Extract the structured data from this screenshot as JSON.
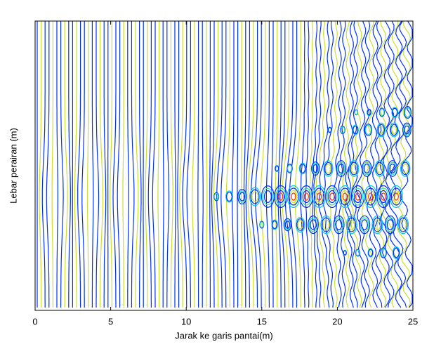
{
  "chart_data": {
    "type": "contour",
    "xlabel": "Jarak ke garis pantai(m)",
    "ylabel": "Lebar perairan (m)",
    "xlim": [
      0,
      25
    ],
    "xticks": [
      0,
      5,
      10,
      15,
      20,
      25
    ],
    "colors": [
      "#0030ff",
      "#00c8f0",
      "#30e0b0",
      "#c8e030",
      "#ffb000",
      "#ff3000"
    ]
  }
}
